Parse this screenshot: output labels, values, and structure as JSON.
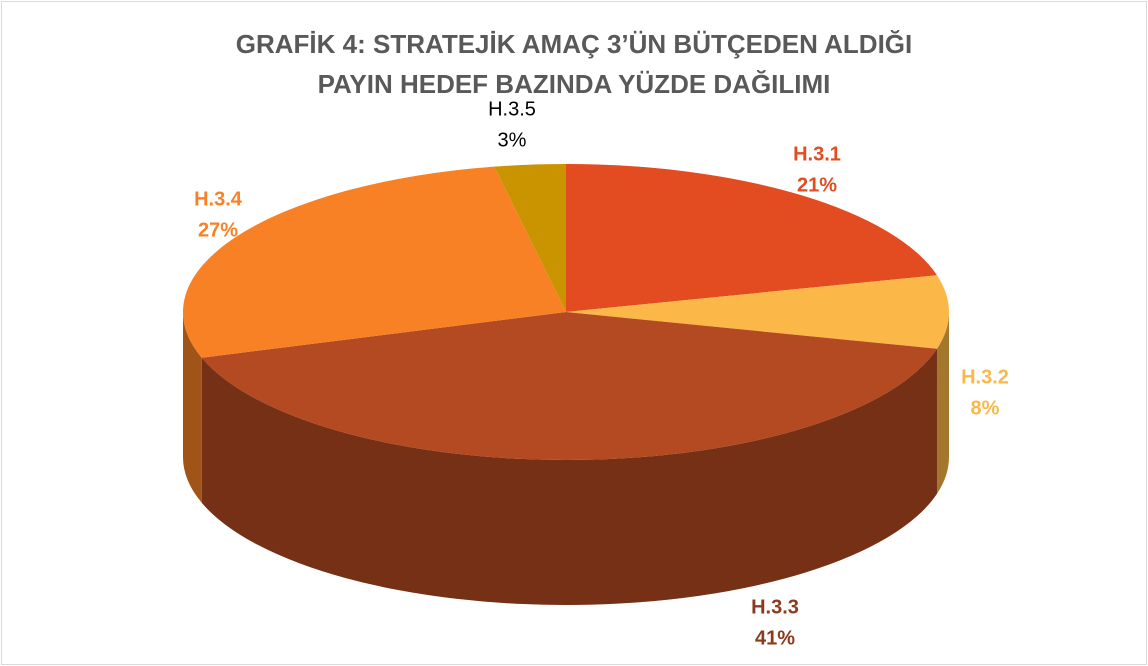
{
  "chart_data": {
    "type": "pie",
    "title": "GRAFİK 4: STRATEJİK AMAÇ 3’ÜN BÜTÇEDEN ALDIĞI PAYIN HEDEF BAZINDA YÜZDE DAĞILIMI",
    "categories": [
      "H.3.1",
      "H.3.2",
      "H.3.3",
      "H.3.4",
      "H.3.5"
    ],
    "values": [
      21,
      8,
      41,
      27,
      3
    ],
    "value_labels": [
      "21%",
      "8%",
      "41%",
      "27%",
      "3%"
    ],
    "colors": [
      "#e34c21",
      "#fbb848",
      "#b44a22",
      "#f88125",
      "#c99400"
    ],
    "label_colors": [
      "#e34c21",
      "#fbb848",
      "#8c3a1c",
      "#f88125",
      "#000000"
    ]
  }
}
